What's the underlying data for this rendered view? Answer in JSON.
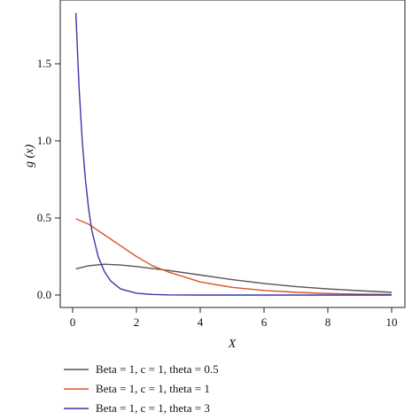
{
  "chart_data": {
    "type": "line",
    "xlabel": "X",
    "ylabel": "g (x)",
    "xlim": [
      0,
      10
    ],
    "ylim": [
      0,
      1.85
    ],
    "xticks": [
      0,
      2,
      4,
      6,
      8,
      10
    ],
    "yticks": [
      0.0,
      0.5,
      1.0,
      1.5
    ],
    "xtick_labels": [
      "0",
      "2",
      "4",
      "6",
      "8",
      "10"
    ],
    "ytick_labels": [
      "0.0",
      "0.5",
      "1.0",
      "1.5"
    ],
    "grid": false,
    "legend_position": "bottom",
    "series": [
      {
        "name": "Beta = 1, c = 1, theta = 0.5",
        "color": "#555555",
        "x": [
          0.1,
          0.5,
          1.0,
          1.5,
          2.0,
          3.0,
          4.0,
          5.0,
          6.0,
          7.0,
          8.0,
          9.0,
          10.0
        ],
        "y": [
          0.17,
          0.19,
          0.2,
          0.195,
          0.185,
          0.16,
          0.13,
          0.1,
          0.075,
          0.055,
          0.04,
          0.028,
          0.018
        ]
      },
      {
        "name": "Beta = 1, c = 1, theta = 1",
        "color": "#d9542b",
        "x": [
          0.1,
          0.5,
          1.0,
          1.5,
          2.0,
          2.5,
          3.0,
          4.0,
          5.0,
          6.0,
          7.0,
          8.0,
          9.0,
          10.0
        ],
        "y": [
          0.495,
          0.46,
          0.39,
          0.32,
          0.25,
          0.19,
          0.15,
          0.085,
          0.05,
          0.03,
          0.018,
          0.01,
          0.006,
          0.004
        ]
      },
      {
        "name": "Beta = 1, c = 1, theta = 3",
        "color": "#3b35a8",
        "x": [
          0.1,
          0.2,
          0.3,
          0.4,
          0.5,
          0.6,
          0.8,
          1.0,
          1.2,
          1.5,
          2.0,
          2.5,
          3.0,
          4.0,
          5.0,
          6.0,
          8.0,
          10.0
        ],
        "y": [
          1.83,
          1.35,
          1.0,
          0.75,
          0.56,
          0.42,
          0.25,
          0.15,
          0.09,
          0.04,
          0.012,
          0.004,
          0.001,
          0.0,
          0.0,
          0.0,
          0.0,
          0.0
        ]
      }
    ]
  }
}
